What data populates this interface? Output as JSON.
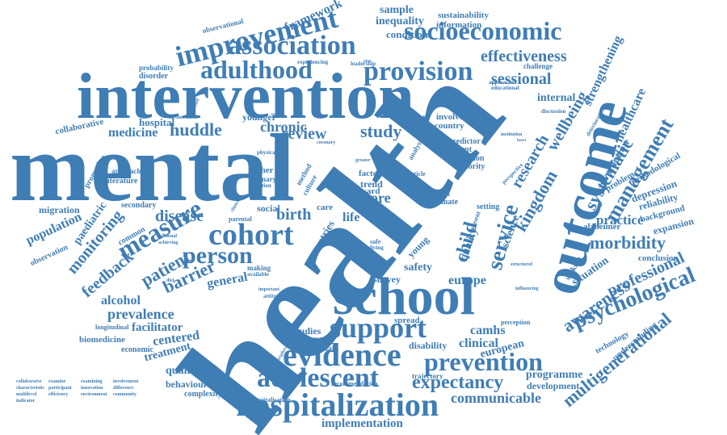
{
  "colors": {
    "word": "#3f7db5",
    "background": "#ffffff"
  },
  "words": [
    "health",
    "mental",
    "intervention",
    "outcome",
    "school",
    "evidence",
    "support",
    "hospitalization",
    "adolescent",
    "improvement",
    "association",
    "socioeconomic",
    "provision",
    "adulthood",
    "prevention",
    "cohort",
    "measure",
    "person",
    "psychological",
    "service",
    "expectancy",
    "management",
    "systematic",
    "kingdom",
    "child",
    "research",
    "wellbeing",
    "morbidity",
    "awareness",
    "multigenerational",
    "professional",
    "communicable",
    "implementation",
    "effectiveness",
    "sessional",
    "strengthening",
    "framework",
    "collaborative",
    "inequality",
    "sustainability",
    "information",
    "condition",
    "observational",
    "challenge",
    "probability",
    "disorder",
    "experiencing",
    "leadership",
    "educational",
    "approaches",
    "internal",
    "healthcare",
    "huddle",
    "medicine",
    "hospital",
    "netherlands",
    "younger",
    "chronic",
    "review",
    "study",
    "policy",
    "involved",
    "country",
    "predictor",
    "current",
    "decision",
    "priority",
    "analysis",
    "discussion",
    "deterioration",
    "evaluation",
    "depression",
    "methodological",
    "problem",
    "reliability",
    "background",
    "expansion",
    "alzheimer",
    "practice",
    "conclusion",
    "situation",
    "seeking",
    "barrier",
    "patient",
    "feedback",
    "monitoring",
    "disease",
    "birth",
    "social",
    "general",
    "alcohol",
    "prevalence",
    "facilitator",
    "centered",
    "treatment",
    "qualitative",
    "behaviour",
    "complexity",
    "biomedicine",
    "economic",
    "longitudinal",
    "studies",
    "processes",
    "potential",
    "disability",
    "clinical",
    "european",
    "camhs",
    "europe",
    "safety",
    "quality",
    "science",
    "survey",
    "spread",
    "trajectory",
    "recommendation",
    "hospitalisation",
    "development",
    "programme",
    "technology",
    "understanding",
    "literature",
    "approach",
    "promotion",
    "migration",
    "population",
    "paediatric",
    "observation",
    "secondary",
    "common",
    "higher",
    "primary",
    "position",
    "method",
    "culture",
    "trend",
    "factor",
    "ward",
    "more",
    "case",
    "life",
    "care",
    "young",
    "countries",
    "safe",
    "living",
    "global",
    "climate",
    "setting",
    "present",
    "perception",
    "influencing",
    "structured",
    "making",
    "available",
    "parental",
    "physical",
    "exploration",
    "attitude",
    "important",
    "article",
    "finding",
    "greater",
    "perspective",
    "collaboratve",
    "examine",
    "examining",
    "involvement",
    "characteristic",
    "participant",
    "innovation",
    "difference",
    "multilevel",
    "efficiency",
    "environment",
    "community",
    "indicator",
    "sample",
    "coronary",
    "institution",
    "heart",
    "diet",
    "achieving",
    "national",
    "clinician",
    "plan",
    "period",
    "total"
  ]
}
